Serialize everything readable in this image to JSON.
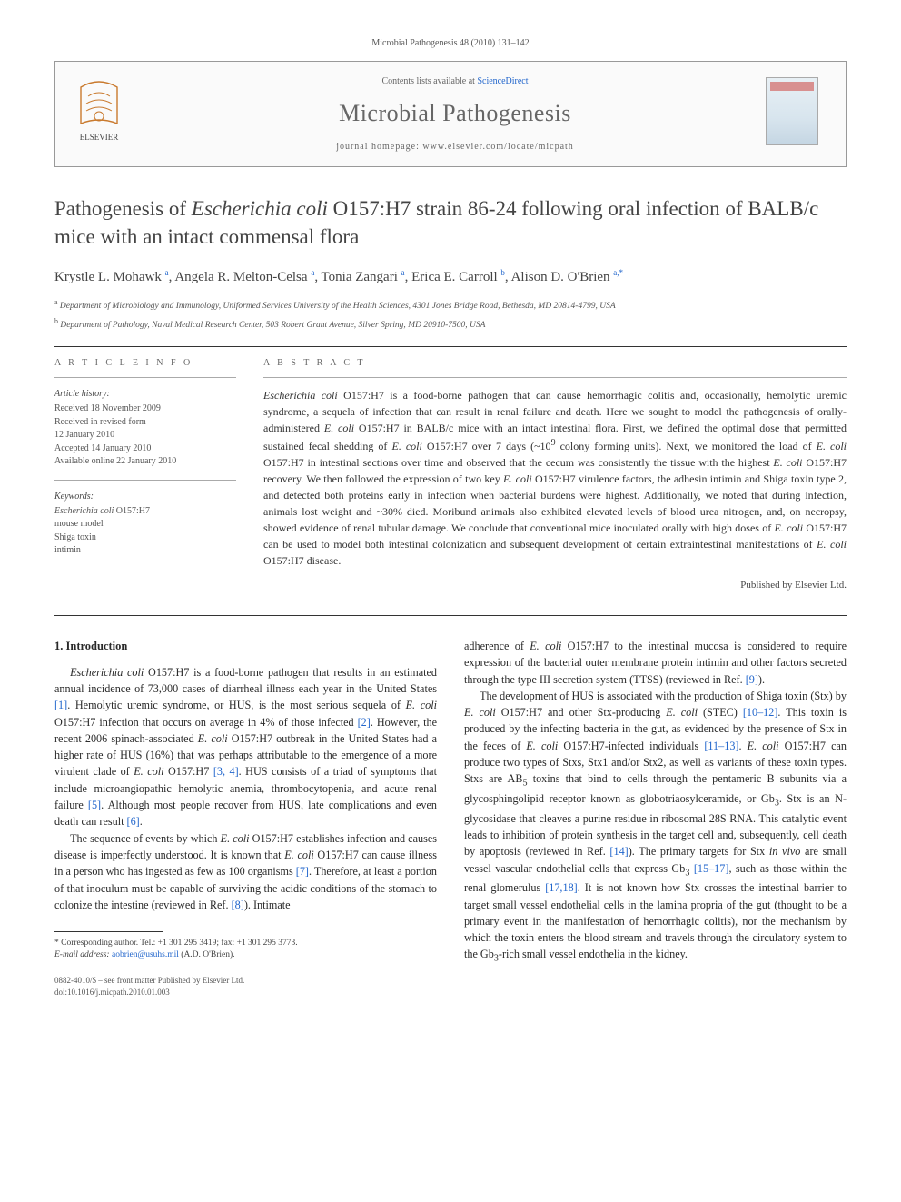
{
  "header": {
    "citation": "Microbial Pathogenesis 48 (2010) 131–142",
    "contents_line_prefix": "Contents lists available at ",
    "contents_line_link": "ScienceDirect",
    "journal_name": "Microbial Pathogenesis",
    "homepage_prefix": "journal homepage: ",
    "homepage_url": "www.elsevier.com/locate/micpath",
    "publisher_logo_label": "ELSEVIER",
    "cover_label": "MICROBIAL PATHOGENESIS"
  },
  "article": {
    "title_html": "Pathogenesis of <em>Escherichia coli</em> O157:H7 strain 86-24 following oral infection of BALB/c mice with an intact commensal flora",
    "authors_html": "Krystle L. Mohawk <sup>a</sup>, Angela R. Melton-Celsa <sup>a</sup>, Tonia Zangari <sup>a</sup>, Erica E. Carroll <sup>b</sup>, Alison D. O'Brien <sup>a,*</sup>",
    "affiliations": [
      {
        "sup": "a",
        "text": "Department of Microbiology and Immunology, Uniformed Services University of the Health Sciences, 4301 Jones Bridge Road, Bethesda, MD 20814-4799, USA"
      },
      {
        "sup": "b",
        "text": "Department of Pathology, Naval Medical Research Center, 503 Robert Grant Avenue, Silver Spring, MD 20910-7500, USA"
      }
    ]
  },
  "info": {
    "label": "A R T I C L E   I N F O",
    "history_heading": "Article history:",
    "history_lines": [
      "Received 18 November 2009",
      "Received in revised form",
      "12 January 2010",
      "Accepted 14 January 2010",
      "Available online 22 January 2010"
    ],
    "keywords_heading": "Keywords:",
    "keywords": [
      "Escherichia coli O157:H7",
      "mouse model",
      "Shiga toxin",
      "intimin"
    ]
  },
  "abstract": {
    "label": "A B S T R A C T",
    "text_html": "<em>Escherichia coli</em> O157:H7 is a food-borne pathogen that can cause hemorrhagic colitis and, occasionally, hemolytic uremic syndrome, a sequela of infection that can result in renal failure and death. Here we sought to model the pathogenesis of orally-administered <em>E. coli</em> O157:H7 in BALB/c mice with an intact intestinal flora. First, we defined the optimal dose that permitted sustained fecal shedding of <em>E. coli</em> O157:H7 over 7 days (~10<sup>9</sup> colony forming units). Next, we monitored the load of <em>E. coli</em> O157:H7 in intestinal sections over time and observed that the cecum was consistently the tissue with the highest <em>E. coli</em> O157:H7 recovery. We then followed the expression of two key <em>E. coli</em> O157:H7 virulence factors, the adhesin intimin and Shiga toxin type 2, and detected both proteins early in infection when bacterial burdens were highest. Additionally, we noted that during infection, animals lost weight and ~30% died. Moribund animals also exhibited elevated levels of blood urea nitrogen, and, on necropsy, showed evidence of renal tubular damage. We conclude that conventional mice inoculated orally with high doses of <em>E. coli</em> O157:H7 can be used to model both intestinal colonization and subsequent development of certain extraintestinal manifestations of <em>E. coli</em> O157:H7 disease.",
    "published_by": "Published by Elsevier Ltd."
  },
  "body": {
    "heading": "1. Introduction",
    "p1_html": "<em>Escherichia coli</em> O157:H7 is a food-borne pathogen that results in an estimated annual incidence of 73,000 cases of diarrheal illness each year in the United States <span class=\"ref-link\">[1]</span>. Hemolytic uremic syndrome, or HUS, is the most serious sequela of <em>E. coli</em> O157:H7 infection that occurs on average in 4% of those infected <span class=\"ref-link\">[2]</span>. However, the recent 2006 spinach-associated <em>E. coli</em> O157:H7 outbreak in the United States had a higher rate of HUS (16%) that was perhaps attributable to the emergence of a more virulent clade of <em>E. coli</em> O157:H7 <span class=\"ref-link\">[3, 4]</span>. HUS consists of a triad of symptoms that include microangiopathic hemolytic anemia, thrombocytopenia, and acute renal failure <span class=\"ref-link\">[5]</span>. Although most people recover from HUS, late complications and even death can result <span class=\"ref-link\">[6]</span>.",
    "p2_html": "The sequence of events by which <em>E. coli</em> O157:H7 establishes infection and causes disease is imperfectly understood. It is known that <em>E. coli</em> O157:H7 can cause illness in a person who has ingested as few as 100 organisms <span class=\"ref-link\">[7]</span>. Therefore, at least a portion of that inoculum must be capable of surviving the acidic conditions of the stomach to colonize the intestine (reviewed in Ref. <span class=\"ref-link\">[8]</span>). Intimate",
    "p3_html": "adherence of <em>E. coli</em> O157:H7 to the intestinal mucosa is considered to require expression of the bacterial outer membrane protein intimin and other factors secreted through the type III secretion system (TTSS) (reviewed in Ref. <span class=\"ref-link\">[9]</span>).",
    "p4_html": "The development of HUS is associated with the production of Shiga toxin (Stx) by <em>E. coli</em> O157:H7 and other Stx-producing <em>E. coli</em> (STEC) <span class=\"ref-link\">[10–12]</span>. This toxin is produced by the infecting bacteria in the gut, as evidenced by the presence of Stx in the feces of <em>E. coli</em> O157:H7-infected individuals <span class=\"ref-link\">[11–13]</span>. <em>E. coli</em> O157:H7 can produce two types of Stxs, Stx1 and/or Stx2, as well as variants of these toxin types. Stxs are AB<sub>5</sub> toxins that bind to cells through the pentameric B subunits via a glycosphingolipid receptor known as globotriaosylceramide, or Gb<sub>3</sub>. Stx is an N-glycosidase that cleaves a purine residue in ribosomal 28S RNA. This catalytic event leads to inhibition of protein synthesis in the target cell and, subsequently, cell death by apoptosis (reviewed in Ref. <span class=\"ref-link\">[14]</span>). The primary targets for Stx <em>in vivo</em> are small vessel vascular endothelial cells that express Gb<sub>3</sub> <span class=\"ref-link\">[15–17]</span>, such as those within the renal glomerulus <span class=\"ref-link\">[17,18]</span>. It is not known how Stx crosses the intestinal barrier to target small vessel endothelial cells in the lamina propria of the gut (thought to be a primary event in the manifestation of hemorrhagic colitis), nor the mechanism by which the toxin enters the blood stream and travels through the circulatory system to the Gb<sub>3</sub>-rich small vessel endothelia in the kidney."
  },
  "footnote": {
    "corresponding": "* Corresponding author. Tel.: +1 301 295 3419; fax: +1 301 295 3773.",
    "email_label": "E-mail address: ",
    "email": "aobrien@usuhs.mil",
    "email_suffix": " (A.D. O'Brien)."
  },
  "copyright": {
    "line1": "0882-4010/$ – see front matter Published by Elsevier Ltd.",
    "line2": "doi:10.1016/j.micpath.2010.01.003"
  },
  "colors": {
    "link": "#2266cc",
    "text": "#2a2a2a",
    "muted": "#666666",
    "rule": "#333333"
  }
}
